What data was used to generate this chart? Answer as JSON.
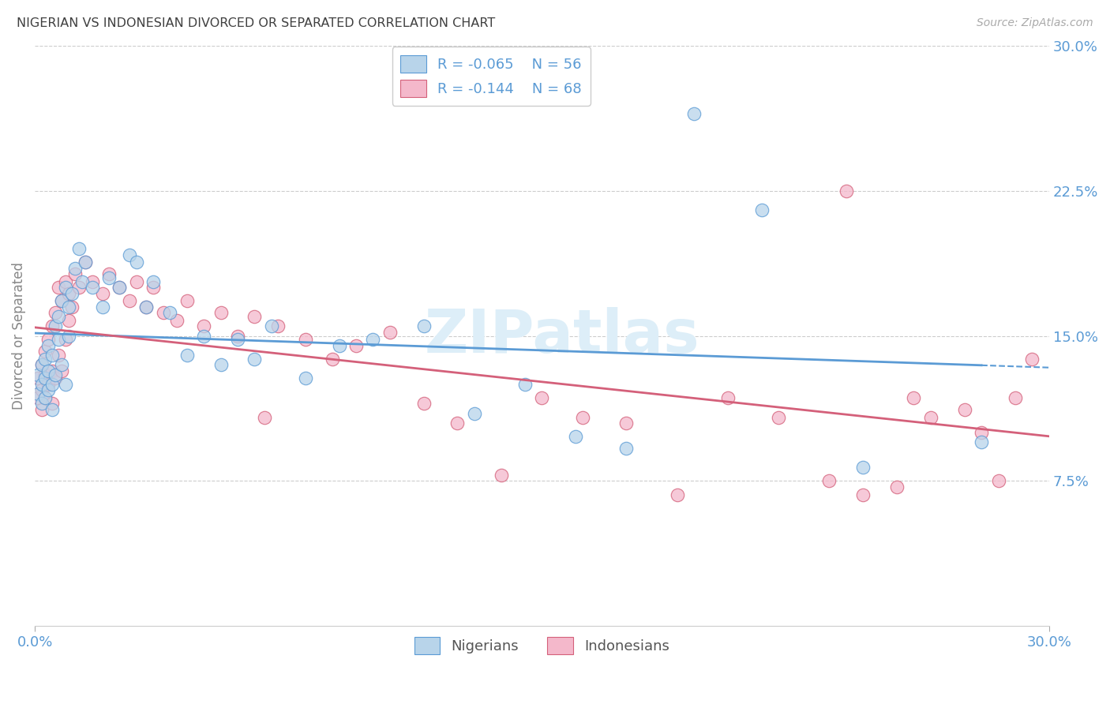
{
  "title": "NIGERIAN VS INDONESIAN DIVORCED OR SEPARATED CORRELATION CHART",
  "source": "Source: ZipAtlas.com",
  "ylabel": "Divorced or Separated",
  "legend_nigerian": "Nigerians",
  "legend_indonesian": "Indonesians",
  "nigerian_R": -0.065,
  "nigerian_N": 56,
  "indonesian_R": -0.144,
  "indonesian_N": 68,
  "color_nigerian_fill": "#b8d4ea",
  "color_nigerian_edge": "#5b9bd5",
  "color_indonesian_fill": "#f4b8cb",
  "color_indonesian_edge": "#d4607a",
  "color_trend_nigerian": "#5b9bd5",
  "color_trend_indonesian": "#d4607a",
  "color_axis_labels": "#5b9bd5",
  "color_title": "#404040",
  "color_grid": "#cccccc",
  "color_watermark": "#ddeef8",
  "xlim": [
    0.0,
    0.3
  ],
  "ylim": [
    0.0,
    0.3
  ],
  "y_ticks_right": [
    0.075,
    0.15,
    0.225,
    0.3
  ],
  "y_ticks_right_labels": [
    "7.5%",
    "15.0%",
    "22.5%",
    "30.0%"
  ],
  "nigerian_x": [
    0.001,
    0.001,
    0.002,
    0.002,
    0.002,
    0.003,
    0.003,
    0.003,
    0.004,
    0.004,
    0.004,
    0.005,
    0.005,
    0.005,
    0.006,
    0.006,
    0.007,
    0.007,
    0.008,
    0.008,
    0.009,
    0.009,
    0.01,
    0.01,
    0.011,
    0.012,
    0.013,
    0.014,
    0.015,
    0.017,
    0.02,
    0.022,
    0.025,
    0.028,
    0.03,
    0.033,
    0.035,
    0.04,
    0.045,
    0.05,
    0.055,
    0.06,
    0.065,
    0.07,
    0.08,
    0.09,
    0.1,
    0.115,
    0.13,
    0.145,
    0.16,
    0.175,
    0.195,
    0.215,
    0.245,
    0.28
  ],
  "nigerian_y": [
    0.13,
    0.12,
    0.125,
    0.115,
    0.135,
    0.118,
    0.128,
    0.138,
    0.122,
    0.132,
    0.145,
    0.112,
    0.125,
    0.14,
    0.13,
    0.155,
    0.148,
    0.16,
    0.135,
    0.168,
    0.125,
    0.175,
    0.15,
    0.165,
    0.172,
    0.185,
    0.195,
    0.178,
    0.188,
    0.175,
    0.165,
    0.18,
    0.175,
    0.192,
    0.188,
    0.165,
    0.178,
    0.162,
    0.14,
    0.15,
    0.135,
    0.148,
    0.138,
    0.155,
    0.128,
    0.145,
    0.148,
    0.155,
    0.11,
    0.125,
    0.098,
    0.092,
    0.265,
    0.215,
    0.082,
    0.095
  ],
  "indonesian_x": [
    0.001,
    0.001,
    0.002,
    0.002,
    0.002,
    0.003,
    0.003,
    0.003,
    0.004,
    0.004,
    0.005,
    0.005,
    0.005,
    0.006,
    0.006,
    0.007,
    0.007,
    0.008,
    0.008,
    0.009,
    0.009,
    0.01,
    0.01,
    0.011,
    0.012,
    0.013,
    0.015,
    0.017,
    0.02,
    0.022,
    0.025,
    0.028,
    0.03,
    0.033,
    0.035,
    0.038,
    0.042,
    0.045,
    0.05,
    0.055,
    0.06,
    0.065,
    0.068,
    0.072,
    0.08,
    0.088,
    0.095,
    0.105,
    0.115,
    0.125,
    0.138,
    0.15,
    0.162,
    0.175,
    0.19,
    0.205,
    0.22,
    0.24,
    0.26,
    0.275,
    0.285,
    0.29,
    0.295,
    0.28,
    0.265,
    0.255,
    0.245,
    0.235
  ],
  "indonesian_y": [
    0.128,
    0.118,
    0.122,
    0.135,
    0.112,
    0.13,
    0.142,
    0.118,
    0.148,
    0.125,
    0.115,
    0.132,
    0.155,
    0.128,
    0.162,
    0.14,
    0.175,
    0.132,
    0.168,
    0.148,
    0.178,
    0.158,
    0.172,
    0.165,
    0.182,
    0.175,
    0.188,
    0.178,
    0.172,
    0.182,
    0.175,
    0.168,
    0.178,
    0.165,
    0.175,
    0.162,
    0.158,
    0.168,
    0.155,
    0.162,
    0.15,
    0.16,
    0.108,
    0.155,
    0.148,
    0.138,
    0.145,
    0.152,
    0.115,
    0.105,
    0.078,
    0.118,
    0.108,
    0.105,
    0.068,
    0.118,
    0.108,
    0.225,
    0.118,
    0.112,
    0.075,
    0.118,
    0.138,
    0.1,
    0.108,
    0.072,
    0.068,
    0.075
  ]
}
